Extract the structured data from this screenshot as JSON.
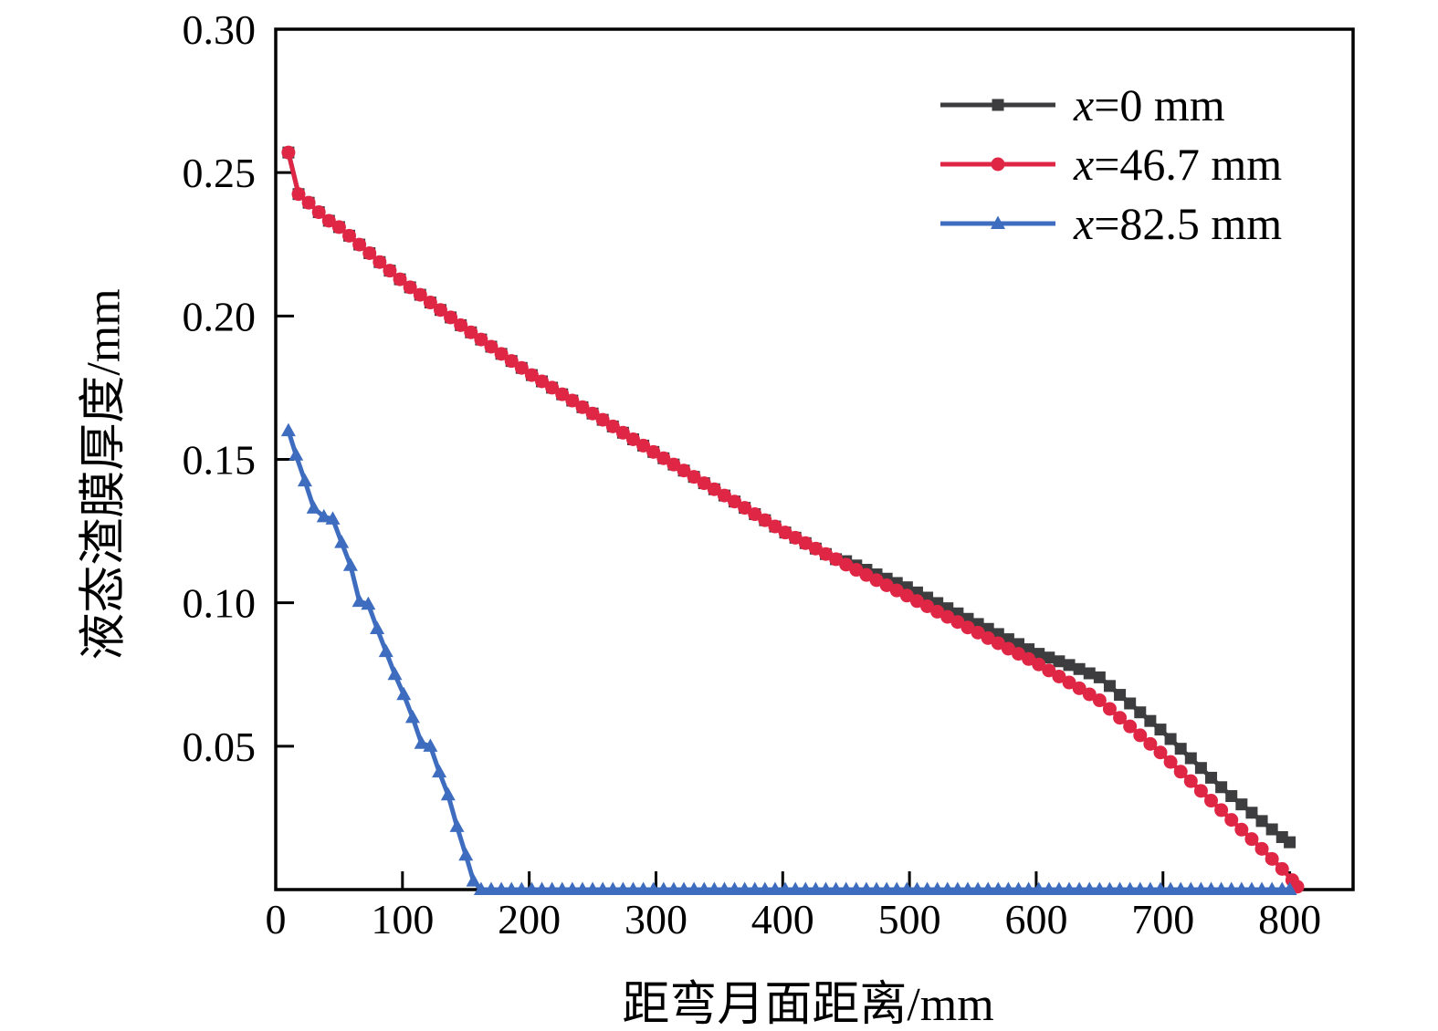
{
  "chart_data": {
    "type": "line",
    "title": "",
    "xlabel": "距弯月面距离/mm",
    "ylabel": "液态渣膜厚度/mm",
    "xlim": [
      0,
      850
    ],
    "ylim": [
      0,
      0.3
    ],
    "grid": false,
    "legend_position": "top-right",
    "axis_color": "#000000",
    "x_ticks": [
      {
        "v": 0,
        "label": "0"
      },
      {
        "v": 100,
        "label": "100"
      },
      {
        "v": 200,
        "label": "200"
      },
      {
        "v": 300,
        "label": "300"
      },
      {
        "v": 400,
        "label": "400"
      },
      {
        "v": 500,
        "label": "500"
      },
      {
        "v": 600,
        "label": "600"
      },
      {
        "v": 700,
        "label": "700"
      },
      {
        "v": 800,
        "label": "800"
      }
    ],
    "y_ticks": [
      {
        "v": 0.05,
        "label": "0.05"
      },
      {
        "v": 0.1,
        "label": "0.10"
      },
      {
        "v": 0.15,
        "label": "0.15"
      },
      {
        "v": 0.2,
        "label": "0.20"
      },
      {
        "v": 0.25,
        "label": "0.25"
      },
      {
        "v": 0.3,
        "label": "0.30"
      }
    ],
    "series": [
      {
        "name": "x=0 mm",
        "var": "x",
        "rest": "=0 mm",
        "color": "#3d3d3f",
        "marker": "square",
        "points": [
          [
            10,
            0.257
          ],
          [
            18,
            0.2425
          ],
          [
            26,
            0.2395
          ],
          [
            34,
            0.2362
          ],
          [
            42,
            0.2332
          ],
          [
            50,
            0.231
          ],
          [
            58,
            0.228
          ],
          [
            66,
            0.2249
          ],
          [
            74,
            0.2219
          ],
          [
            82,
            0.2188
          ],
          [
            90,
            0.2158
          ],
          [
            98,
            0.2128
          ],
          [
            106,
            0.21
          ],
          [
            114,
            0.2074
          ],
          [
            122,
            0.2047
          ],
          [
            130,
            0.2021
          ],
          [
            138,
            0.1995
          ],
          [
            146,
            0.1968
          ],
          [
            154,
            0.1943
          ],
          [
            162,
            0.1918
          ],
          [
            170,
            0.1893
          ],
          [
            178,
            0.1868
          ],
          [
            186,
            0.1843
          ],
          [
            194,
            0.1819
          ],
          [
            202,
            0.1794
          ],
          [
            210,
            0.1772
          ],
          [
            218,
            0.175
          ],
          [
            226,
            0.1727
          ],
          [
            234,
            0.1705
          ],
          [
            242,
            0.1682
          ],
          [
            250,
            0.166
          ],
          [
            258,
            0.1638
          ],
          [
            266,
            0.1615
          ],
          [
            274,
            0.1593
          ],
          [
            282,
            0.157
          ],
          [
            290,
            0.1548
          ],
          [
            298,
            0.1526
          ],
          [
            306,
            0.1504
          ],
          [
            314,
            0.1482
          ],
          [
            322,
            0.1461
          ],
          [
            330,
            0.1439
          ],
          [
            338,
            0.1417
          ],
          [
            346,
            0.1396
          ],
          [
            354,
            0.1374
          ],
          [
            362,
            0.1353
          ],
          [
            370,
            0.1331
          ],
          [
            378,
            0.1309
          ],
          [
            386,
            0.1288
          ],
          [
            394,
            0.1266
          ],
          [
            402,
            0.1245
          ],
          [
            410,
            0.1227
          ],
          [
            418,
            0.1208
          ],
          [
            426,
            0.1189
          ],
          [
            434,
            0.117
          ],
          [
            442,
            0.1152
          ],
          [
            450,
            0.1145
          ],
          [
            458,
            0.113
          ],
          [
            466,
            0.1115
          ],
          [
            474,
            0.1099
          ],
          [
            482,
            0.1084
          ],
          [
            490,
            0.1069
          ],
          [
            498,
            0.1054
          ],
          [
            506,
            0.1036
          ],
          [
            514,
            0.1018
          ],
          [
            522,
            0.0999
          ],
          [
            530,
            0.0981
          ],
          [
            538,
            0.0963
          ],
          [
            546,
            0.0944
          ],
          [
            554,
            0.0926
          ],
          [
            562,
            0.0909
          ],
          [
            570,
            0.0891
          ],
          [
            578,
            0.0873
          ],
          [
            586,
            0.0856
          ],
          [
            594,
            0.0838
          ],
          [
            602,
            0.0822
          ],
          [
            610,
            0.0809
          ],
          [
            618,
            0.0796
          ],
          [
            626,
            0.0783
          ],
          [
            634,
            0.0769
          ],
          [
            642,
            0.0754
          ],
          [
            650,
            0.074
          ],
          [
            658,
            0.071
          ],
          [
            666,
            0.0679
          ],
          [
            674,
            0.0649
          ],
          [
            682,
            0.0618
          ],
          [
            690,
            0.0588
          ],
          [
            698,
            0.0558
          ],
          [
            706,
            0.0525
          ],
          [
            714,
            0.0491
          ],
          [
            722,
            0.0458
          ],
          [
            730,
            0.0424
          ],
          [
            738,
            0.039
          ],
          [
            746,
            0.0357
          ],
          [
            754,
            0.0326
          ],
          [
            762,
            0.0297
          ],
          [
            770,
            0.0268
          ],
          [
            778,
            0.0239
          ],
          [
            786,
            0.021
          ],
          [
            794,
            0.0183
          ],
          [
            800,
            0.0165
          ]
        ]
      },
      {
        "name": "x=46.7 mm",
        "var": "x",
        "rest": "=46.7 mm",
        "color": "#df2745",
        "marker": "circle",
        "points": [
          [
            10,
            0.257
          ],
          [
            18,
            0.2425
          ],
          [
            26,
            0.2395
          ],
          [
            34,
            0.2362
          ],
          [
            42,
            0.2332
          ],
          [
            50,
            0.231
          ],
          [
            58,
            0.228
          ],
          [
            66,
            0.2249
          ],
          [
            74,
            0.2219
          ],
          [
            82,
            0.2188
          ],
          [
            90,
            0.2158
          ],
          [
            98,
            0.2128
          ],
          [
            106,
            0.21
          ],
          [
            114,
            0.2074
          ],
          [
            122,
            0.2047
          ],
          [
            130,
            0.2021
          ],
          [
            138,
            0.1995
          ],
          [
            146,
            0.1968
          ],
          [
            154,
            0.1943
          ],
          [
            162,
            0.1918
          ],
          [
            170,
            0.1893
          ],
          [
            178,
            0.1868
          ],
          [
            186,
            0.1843
          ],
          [
            194,
            0.1819
          ],
          [
            202,
            0.1794
          ],
          [
            210,
            0.1772
          ],
          [
            218,
            0.175
          ],
          [
            226,
            0.1727
          ],
          [
            234,
            0.1705
          ],
          [
            242,
            0.1682
          ],
          [
            250,
            0.166
          ],
          [
            258,
            0.1638
          ],
          [
            266,
            0.1615
          ],
          [
            274,
            0.1593
          ],
          [
            282,
            0.157
          ],
          [
            290,
            0.1548
          ],
          [
            298,
            0.1526
          ],
          [
            306,
            0.1504
          ],
          [
            314,
            0.1482
          ],
          [
            322,
            0.1461
          ],
          [
            330,
            0.1439
          ],
          [
            338,
            0.1417
          ],
          [
            346,
            0.1396
          ],
          [
            354,
            0.1374
          ],
          [
            362,
            0.1353
          ],
          [
            370,
            0.1331
          ],
          [
            378,
            0.1309
          ],
          [
            386,
            0.1288
          ],
          [
            394,
            0.1266
          ],
          [
            402,
            0.1245
          ],
          [
            410,
            0.1227
          ],
          [
            418,
            0.1208
          ],
          [
            426,
            0.1189
          ],
          [
            434,
            0.117
          ],
          [
            442,
            0.1152
          ],
          [
            450,
            0.1133
          ],
          [
            458,
            0.1115
          ],
          [
            466,
            0.1097
          ],
          [
            474,
            0.1079
          ],
          [
            482,
            0.1061
          ],
          [
            490,
            0.1043
          ],
          [
            498,
            0.1025
          ],
          [
            506,
            0.1006
          ],
          [
            514,
            0.0988
          ],
          [
            522,
            0.0969
          ],
          [
            530,
            0.0951
          ],
          [
            538,
            0.0933
          ],
          [
            546,
            0.0914
          ],
          [
            554,
            0.0896
          ],
          [
            562,
            0.0877
          ],
          [
            570,
            0.0859
          ],
          [
            578,
            0.084
          ],
          [
            586,
            0.0822
          ],
          [
            594,
            0.0804
          ],
          [
            602,
            0.0785
          ],
          [
            610,
            0.0764
          ],
          [
            618,
            0.0743
          ],
          [
            626,
            0.0722
          ],
          [
            634,
            0.0702
          ],
          [
            642,
            0.0681
          ],
          [
            650,
            0.066
          ],
          [
            658,
            0.063
          ],
          [
            666,
            0.0599
          ],
          [
            674,
            0.0569
          ],
          [
            682,
            0.0538
          ],
          [
            690,
            0.0508
          ],
          [
            698,
            0.0478
          ],
          [
            706,
            0.0445
          ],
          [
            714,
            0.0411
          ],
          [
            722,
            0.0378
          ],
          [
            730,
            0.0344
          ],
          [
            738,
            0.031
          ],
          [
            746,
            0.0277
          ],
          [
            754,
            0.0243
          ],
          [
            762,
            0.0209
          ],
          [
            770,
            0.0176
          ],
          [
            778,
            0.0142
          ],
          [
            786,
            0.0107
          ],
          [
            794,
            0.0072
          ],
          [
            802,
            0.0033
          ],
          [
            806,
            0.001
          ]
        ]
      },
      {
        "name": "x=82.5 mm",
        "var": "x",
        "rest": "=82.5 mm",
        "color": "#3e6dc0",
        "marker": "triangle",
        "points": [
          [
            10,
            0.16
          ],
          [
            16,
            0.1515
          ],
          [
            23,
            0.1425
          ],
          [
            30,
            0.133
          ],
          [
            38,
            0.13
          ],
          [
            45,
            0.1292
          ],
          [
            52,
            0.121
          ],
          [
            59,
            0.113
          ],
          [
            66,
            0.1005
          ],
          [
            73,
            0.0995
          ],
          [
            80,
            0.091
          ],
          [
            87,
            0.083
          ],
          [
            94,
            0.075
          ],
          [
            101,
            0.068
          ],
          [
            108,
            0.06
          ],
          [
            115,
            0.051
          ],
          [
            122,
            0.05
          ],
          [
            129,
            0.041
          ],
          [
            136,
            0.033
          ],
          [
            143,
            0.022
          ],
          [
            150,
            0.012
          ],
          [
            156,
            0.003
          ],
          [
            162,
            0
          ],
          [
            170,
            0
          ],
          [
            178,
            0
          ],
          [
            186,
            0
          ],
          [
            194,
            0
          ],
          [
            202,
            0
          ],
          [
            210,
            0
          ],
          [
            218,
            0
          ],
          [
            226,
            0
          ],
          [
            234,
            0
          ],
          [
            242,
            0
          ],
          [
            250,
            0
          ],
          [
            258,
            0
          ],
          [
            266,
            0
          ],
          [
            274,
            0
          ],
          [
            282,
            0
          ],
          [
            290,
            0
          ],
          [
            298,
            0
          ],
          [
            306,
            0
          ],
          [
            314,
            0
          ],
          [
            322,
            0
          ],
          [
            330,
            0
          ],
          [
            338,
            0
          ],
          [
            346,
            0
          ],
          [
            354,
            0
          ],
          [
            362,
            0
          ],
          [
            370,
            0
          ],
          [
            378,
            0
          ],
          [
            386,
            0
          ],
          [
            394,
            0
          ],
          [
            402,
            0
          ],
          [
            410,
            0
          ],
          [
            418,
            0
          ],
          [
            426,
            0
          ],
          [
            434,
            0
          ],
          [
            442,
            0
          ],
          [
            450,
            0
          ],
          [
            458,
            0
          ],
          [
            466,
            0
          ],
          [
            474,
            0
          ],
          [
            482,
            0
          ],
          [
            490,
            0
          ],
          [
            498,
            0
          ],
          [
            506,
            0
          ],
          [
            514,
            0
          ],
          [
            522,
            0
          ],
          [
            530,
            0
          ],
          [
            538,
            0
          ],
          [
            546,
            0
          ],
          [
            554,
            0
          ],
          [
            562,
            0
          ],
          [
            570,
            0
          ],
          [
            578,
            0
          ],
          [
            586,
            0
          ],
          [
            594,
            0
          ],
          [
            602,
            0
          ],
          [
            610,
            0
          ],
          [
            618,
            0
          ],
          [
            626,
            0
          ],
          [
            634,
            0
          ],
          [
            642,
            0
          ],
          [
            650,
            0
          ],
          [
            658,
            0
          ],
          [
            666,
            0
          ],
          [
            674,
            0
          ],
          [
            682,
            0
          ],
          [
            690,
            0
          ],
          [
            698,
            0
          ],
          [
            706,
            0
          ],
          [
            714,
            0
          ],
          [
            722,
            0
          ],
          [
            730,
            0
          ],
          [
            738,
            0
          ],
          [
            746,
            0
          ],
          [
            754,
            0
          ],
          [
            762,
            0
          ],
          [
            770,
            0
          ],
          [
            778,
            0
          ],
          [
            786,
            0
          ],
          [
            794,
            0
          ],
          [
            800,
            0
          ]
        ]
      }
    ]
  }
}
